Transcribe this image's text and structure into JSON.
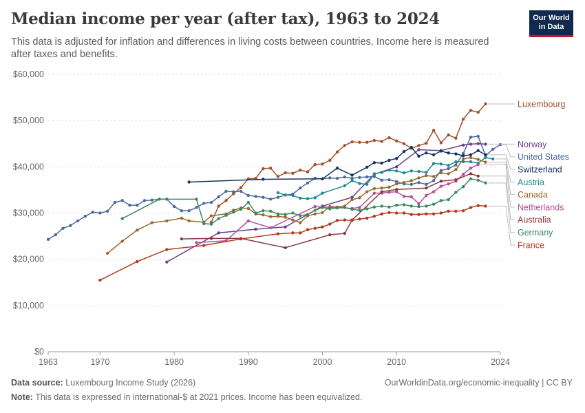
{
  "header": {
    "title": "Median income per year (after tax), 1963 to 2024",
    "subtitle": "This data is adjusted for inflation and differences in living costs between countries. Income here is measured after taxes and benefits.",
    "logo_line1": "Our World",
    "logo_line2": "in Data"
  },
  "footer": {
    "source_label": "Data source:",
    "source_text": "Luxembourg Income Study (2026)",
    "url": "OurWorldinData.org/economic-inequality | CC BY",
    "note_label": "Note:",
    "note_text": "This data is expressed in international-$ at 2021 prices. Income has been equivalized."
  },
  "chart_data": {
    "type": "line",
    "title": "Median income per year (after tax), 1963 to 2024",
    "xlim": [
      1963,
      2024
    ],
    "ylim": [
      0,
      60000
    ],
    "x_ticks": [
      1963,
      1970,
      1980,
      1990,
      2000,
      2010,
      2024
    ],
    "x_tick_labels": [
      "1963",
      "1970",
      "1980",
      "1990",
      "2000",
      "2010",
      "2024"
    ],
    "y_ticks": [
      0,
      10000,
      20000,
      30000,
      40000,
      50000,
      60000
    ],
    "y_tick_labels": [
      "$0",
      "$10,000",
      "$20,000",
      "$30,000",
      "$40,000",
      "$50,000",
      "$60,000"
    ],
    "grid": "horizontal",
    "legend": "right-labels",
    "series": [
      {
        "name": "Luxembourg",
        "color": "#a2522b",
        "x": [
          1985,
          1986,
          1987,
          1988,
          1989,
          1990,
          1991,
          1992,
          1993,
          1994,
          1995,
          1996,
          1997,
          1998,
          1999,
          2000,
          2001,
          2002,
          2003,
          2004,
          2005,
          2006,
          2007,
          2008,
          2009,
          2010,
          2011,
          2012,
          2013,
          2014,
          2015,
          2016,
          2017,
          2018,
          2019,
          2020,
          2021,
          2022,
          2023,
          2024
        ],
        "values": [
          28000,
          31500,
          32700,
          34200,
          35500,
          37400,
          37500,
          39600,
          39700,
          37900,
          38700,
          38600,
          39300,
          38900,
          40500,
          40600,
          41400,
          43200,
          44600,
          45400,
          45300,
          45300,
          45700,
          45500,
          46300,
          45600,
          45000,
          44000,
          44600,
          45100,
          47900,
          45200,
          46900,
          46200,
          50300,
          52200,
          51800,
          53600,
          null,
          null
        ]
      },
      {
        "name": "United States",
        "color": "#4c6a9c",
        "x": [
          1963,
          1964,
          1965,
          1966,
          1967,
          1968,
          1969,
          1970,
          1971,
          1972,
          1973,
          1974,
          1975,
          1976,
          1977,
          1978,
          1979,
          1980,
          1981,
          1982,
          1983,
          1984,
          1985,
          1986,
          1987,
          1988,
          1989,
          1990,
          1991,
          1992,
          1993,
          1994,
          1995,
          1996,
          1997,
          1998,
          1999,
          2000,
          2001,
          2002,
          2003,
          2004,
          2005,
          2006,
          2007,
          2008,
          2009,
          2010,
          2011,
          2012,
          2013,
          2014,
          2015,
          2016,
          2017,
          2018,
          2019,
          2020,
          2021,
          2022,
          2023,
          2024
        ],
        "values": [
          24300,
          25300,
          26700,
          27300,
          28300,
          29300,
          30200,
          30000,
          30400,
          32300,
          32700,
          31700,
          31700,
          32700,
          32800,
          33000,
          33000,
          31400,
          30500,
          30500,
          31200,
          32100,
          32300,
          33500,
          34700,
          34600,
          34700,
          33800,
          33600,
          33400,
          33000,
          33400,
          33900,
          34100,
          35400,
          36500,
          37500,
          37400,
          37600,
          37500,
          37800,
          37500,
          37700,
          37800,
          37900,
          37100,
          37200,
          36800,
          36300,
          36200,
          36600,
          36200,
          37000,
          39200,
          39600,
          40400,
          42900,
          46400,
          46600,
          42400,
          43800,
          44800
        ]
      },
      {
        "name": "Norway",
        "color": "#6b3d8e",
        "x": [
          1979,
          1986,
          1991,
          1995,
          2000,
          2004,
          2007,
          2010,
          2013,
          2016,
          2019,
          2020,
          2021,
          2022
        ],
        "values": [
          19400,
          25700,
          26500,
          27000,
          31500,
          33400,
          38400,
          40000,
          43700,
          43500,
          44700,
          44900,
          45000,
          44900
        ]
      },
      {
        "name": "Switzerland",
        "color": "#15345f",
        "x": [
          1982,
          1992,
          2000,
          2002,
          2004,
          2006,
          2007,
          2008,
          2009,
          2010,
          2011,
          2012,
          2013,
          2014,
          2015,
          2016,
          2017,
          2018,
          2019,
          2020,
          2021,
          2022
        ],
        "values": [
          36700,
          37300,
          37400,
          39700,
          38200,
          39900,
          40900,
          40800,
          41400,
          41800,
          43300,
          44200,
          42300,
          43000,
          42600,
          43400,
          43000,
          42800,
          42400,
          42600,
          43500,
          42600
        ]
      },
      {
        "name": "Austria",
        "color": "#1f8b8f",
        "x": [
          1994,
          1995,
          1996,
          1997,
          1998,
          1999,
          2000,
          2003,
          2004,
          2005,
          2006,
          2007,
          2008,
          2009,
          2010,
          2011,
          2012,
          2013,
          2014,
          2015,
          2016,
          2017,
          2018,
          2019,
          2020,
          2021,
          2022,
          2023
        ],
        "values": [
          34400,
          33900,
          33800,
          33200,
          33100,
          33300,
          34300,
          35900,
          37000,
          36400,
          36200,
          38500,
          38800,
          39300,
          39100,
          38700,
          39100,
          39000,
          38800,
          40700,
          40600,
          40300,
          41100,
          41100,
          41100,
          40800,
          42000,
          41700
        ]
      },
      {
        "name": "Canada",
        "color": "#99692e",
        "x": [
          1971,
          1973,
          1975,
          1977,
          1979,
          1981,
          1982,
          1984,
          1985,
          1987,
          1988,
          1989,
          1990,
          1991,
          1992,
          1993,
          1994,
          1995,
          1996,
          1997,
          1998,
          1999,
          2000,
          2001,
          2002,
          2003,
          2004,
          2005,
          2006,
          2007,
          2008,
          2009,
          2010,
          2011,
          2012,
          2013,
          2014,
          2015,
          2016,
          2017,
          2018,
          2019,
          2020,
          2021,
          2022
        ],
        "values": [
          21300,
          23900,
          26300,
          27900,
          28300,
          28900,
          28300,
          28000,
          29400,
          29800,
          30600,
          31100,
          31000,
          29800,
          29600,
          29200,
          29300,
          29100,
          28500,
          27900,
          29400,
          29800,
          30100,
          31400,
          31300,
          31500,
          32900,
          33300,
          34600,
          35300,
          35400,
          35600,
          36300,
          36600,
          37000,
          37600,
          38100,
          37900,
          38700,
          38500,
          39400,
          41700,
          42000,
          41600,
          41000
        ]
      },
      {
        "name": "Netherlands",
        "color": "#b34f9a",
        "x": [
          1983,
          1987,
          1990,
          1993,
          1999,
          2004,
          2005,
          2007,
          2008,
          2009,
          2010,
          2011,
          2012,
          2013,
          2014,
          2015,
          2016,
          2017,
          2018,
          2019,
          2020,
          2021
        ],
        "values": [
          23600,
          24000,
          28300,
          26800,
          31400,
          31000,
          31200,
          34300,
          34300,
          34500,
          34600,
          33600,
          33500,
          32000,
          33800,
          34600,
          35800,
          36300,
          36900,
          38400,
          39700,
          40500
        ]
      },
      {
        "name": "Australia",
        "color": "#8a3a3e",
        "x": [
          1981,
          1985,
          1989,
          1995,
          2001,
          2003,
          2004,
          2008,
          2010,
          2014,
          2016,
          2018,
          2020,
          2021
        ],
        "values": [
          24400,
          24500,
          24500,
          22500,
          25300,
          25600,
          28500,
          34600,
          35100,
          35400,
          36900,
          37200,
          38500,
          38000
        ]
      },
      {
        "name": "Germany",
        "color": "#3c8a61",
        "x": [
          1973,
          1978,
          1983,
          1984,
          1985,
          1986,
          1987,
          1988,
          1989,
          1990,
          1991,
          1992,
          1993,
          1994,
          1995,
          1996,
          1997,
          1998,
          1999,
          2000,
          2001,
          2002,
          2003,
          2004,
          2005,
          2006,
          2007,
          2008,
          2009,
          2010,
          2011,
          2012,
          2013,
          2014,
          2015,
          2016,
          2017,
          2018,
          2019,
          2020,
          2021,
          2022
        ],
        "values": [
          28800,
          33000,
          33000,
          27700,
          27600,
          28800,
          29500,
          30200,
          30800,
          32300,
          30000,
          30500,
          30400,
          29800,
          29700,
          30000,
          29400,
          29700,
          30600,
          31200,
          30900,
          31100,
          31200,
          30800,
          30600,
          30900,
          31300,
          31500,
          31300,
          31700,
          31800,
          31500,
          31400,
          31500,
          31900,
          32700,
          32900,
          34500,
          35700,
          37400,
          37100,
          36500
        ]
      },
      {
        "name": "France",
        "color": "#b03a1f",
        "x": [
          1970,
          1975,
          1979,
          1984,
          1989,
          1994,
          1996,
          1997,
          1998,
          1999,
          2000,
          2001,
          2002,
          2003,
          2004,
          2005,
          2006,
          2007,
          2008,
          2009,
          2010,
          2011,
          2012,
          2013,
          2014,
          2015,
          2016,
          2017,
          2018,
          2019,
          2020,
          2021,
          2022
        ],
        "values": [
          15500,
          19500,
          22100,
          23000,
          24400,
          25500,
          25700,
          25700,
          26400,
          26700,
          27000,
          27600,
          28400,
          28500,
          28400,
          28700,
          28900,
          29300,
          29800,
          30100,
          30000,
          30000,
          29700,
          29700,
          29800,
          29800,
          30000,
          30400,
          30400,
          30500,
          31200,
          31600,
          31500
        ]
      }
    ]
  }
}
